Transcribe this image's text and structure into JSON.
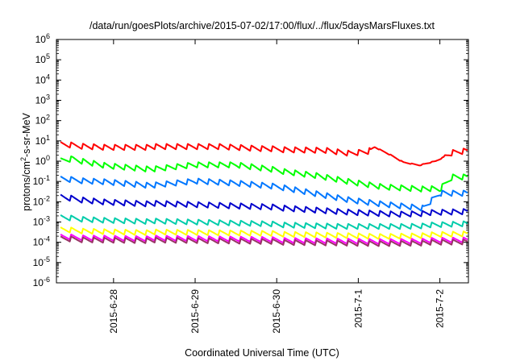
{
  "chart_data": {
    "type": "line",
    "title": "/data/run/goesPlots/archive/2015-07-02/17:00/flux/../flux/5daysMarsFluxes.txt",
    "xlabel": "Coordinated Universal Time (UTC)",
    "ylabel": "protons/cm2-s-sr-MeV",
    "ylabel_parts": {
      "before": "protons/cm",
      "sup": "2",
      "after": "-s-sr-MeV"
    },
    "yscale": "log",
    "ylim_exponents": [
      -6,
      6
    ],
    "ytick_base": "10",
    "ytick_exponents": [
      "-6",
      "-5",
      "-4",
      "-3",
      "-2",
      "-1",
      "0",
      "1",
      "2",
      "3",
      "4",
      "5",
      "6"
    ],
    "x_unit": "days",
    "xlim_days": [
      0,
      5.05
    ],
    "xtick_days": [
      0.7,
      1.7,
      2.7,
      3.7,
      4.7
    ],
    "xtick_labels": [
      "2015-6-28",
      "2015-6-29",
      "2015-6-30",
      "2015-7-1",
      "2015-7-2"
    ],
    "grid": false,
    "legend": "none",
    "sawtooth_period_days": 0.13,
    "series": [
      {
        "color": "#ff0000",
        "amplitude": 0.3,
        "points": [
          [
            0.05,
            0.8
          ],
          [
            0.6,
            0.7
          ],
          [
            1.5,
            0.7
          ],
          [
            2.0,
            0.7
          ],
          [
            2.5,
            0.6
          ],
          [
            3.3,
            0.55
          ],
          [
            3.6,
            0.4
          ],
          [
            3.82,
            0.5
          ],
          [
            3.9,
            0.7
          ],
          [
            4.1,
            0.3
          ],
          [
            4.25,
            -0.05
          ],
          [
            4.45,
            -0.2
          ],
          [
            4.65,
            0.0
          ],
          [
            4.85,
            0.4
          ],
          [
            5.05,
            0.5
          ]
        ]
      },
      {
        "color": "#00ff00",
        "amplitude": 0.3,
        "points": [
          [
            0.05,
            0.0
          ],
          [
            0.2,
            0.1
          ],
          [
            0.6,
            -0.2
          ],
          [
            1.2,
            -0.4
          ],
          [
            1.7,
            -0.2
          ],
          [
            2.2,
            -0.2
          ],
          [
            2.8,
            -0.5
          ],
          [
            3.2,
            -0.7
          ],
          [
            3.6,
            -1.0
          ],
          [
            4.0,
            -1.25
          ],
          [
            4.7,
            -1.4
          ],
          [
            4.85,
            -0.8
          ],
          [
            5.05,
            -0.8
          ]
        ]
      },
      {
        "color": "#0077ff",
        "amplitude": 0.3,
        "points": [
          [
            0.05,
            -0.9
          ],
          [
            0.6,
            -1.0
          ],
          [
            1.2,
            -1.2
          ],
          [
            1.7,
            -1.0
          ],
          [
            2.2,
            -1.1
          ],
          [
            2.8,
            -1.3
          ],
          [
            3.2,
            -1.6
          ],
          [
            3.6,
            -1.9
          ],
          [
            4.0,
            -2.1
          ],
          [
            4.5,
            -2.3
          ],
          [
            4.7,
            -1.6
          ],
          [
            5.05,
            -1.6
          ]
        ]
      },
      {
        "color": "#0000cc",
        "amplitude": 0.3,
        "points": [
          [
            0.05,
            -1.8
          ],
          [
            0.6,
            -2.0
          ],
          [
            1.2,
            -2.1
          ],
          [
            2.0,
            -2.2
          ],
          [
            2.8,
            -2.3
          ],
          [
            3.6,
            -2.5
          ],
          [
            4.2,
            -2.6
          ],
          [
            5.05,
            -2.5
          ]
        ]
      },
      {
        "color": "#00ccaa",
        "amplitude": 0.28,
        "points": [
          [
            0.05,
            -2.8
          ],
          [
            0.6,
            -2.9
          ],
          [
            1.5,
            -3.0
          ],
          [
            2.5,
            -3.1
          ],
          [
            3.5,
            -3.2
          ],
          [
            4.3,
            -3.2
          ],
          [
            5.05,
            -3.1
          ]
        ]
      },
      {
        "color": "#ffff00",
        "amplitude": 0.28,
        "points": [
          [
            0.05,
            -3.4
          ],
          [
            1.0,
            -3.5
          ],
          [
            2.0,
            -3.55
          ],
          [
            3.0,
            -3.6
          ],
          [
            4.0,
            -3.7
          ],
          [
            5.05,
            -3.6
          ]
        ]
      },
      {
        "color": "#ff00ff",
        "amplitude": 0.28,
        "points": [
          [
            0.05,
            -3.75
          ],
          [
            1.0,
            -3.8
          ],
          [
            2.0,
            -3.85
          ],
          [
            3.0,
            -3.9
          ],
          [
            4.0,
            -3.95
          ],
          [
            5.05,
            -3.9
          ]
        ]
      },
      {
        "color": "#993366",
        "amplitude": 0.28,
        "points": [
          [
            0.05,
            -3.85
          ],
          [
            1.0,
            -3.9
          ],
          [
            2.0,
            -3.95
          ],
          [
            3.0,
            -4.0
          ],
          [
            4.0,
            -4.05
          ],
          [
            5.05,
            -4.0
          ]
        ]
      }
    ]
  }
}
